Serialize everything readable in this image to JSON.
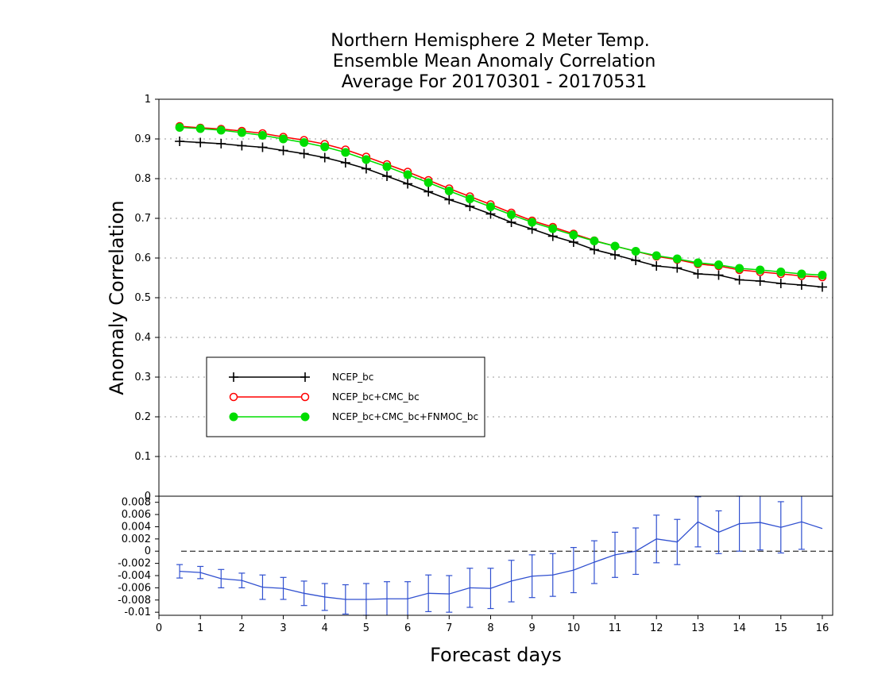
{
  "chart_data": [
    {
      "type": "line",
      "title_lines": [
        "Northern Hemisphere 2 Meter Temp.",
        "Ensemble Mean Anomaly Correlation",
        "Average For 20170301 - 20170531"
      ],
      "ylabel": "Anomaly Correlation",
      "xlabel": "",
      "xlim": [
        0,
        16.25
      ],
      "ylim": [
        0,
        1
      ],
      "yticks": [
        "1",
        "0.9",
        "0.8",
        "0.7",
        "0.6",
        "0.5",
        "0.4",
        "0.3",
        "0.2",
        "0.1",
        "0"
      ],
      "grid": "horizontal-dotted",
      "legend_position": "lower-left",
      "x": [
        0.5,
        1,
        1.5,
        2,
        2.5,
        3,
        3.5,
        4,
        4.5,
        5,
        5.5,
        6,
        6.5,
        7,
        7.5,
        8,
        8.5,
        9,
        9.5,
        10,
        10.5,
        11,
        11.5,
        12,
        12.5,
        13,
        13.5,
        14,
        14.5,
        15,
        15.5,
        16
      ],
      "series": [
        {
          "name": "NCEP_bc",
          "color": "#000000",
          "marker": "plus",
          "values": [
            0.894,
            0.891,
            0.888,
            0.883,
            0.879,
            0.871,
            0.863,
            0.853,
            0.84,
            0.825,
            0.806,
            0.787,
            0.767,
            0.747,
            0.73,
            0.711,
            0.69,
            0.673,
            0.655,
            0.64,
            0.621,
            0.608,
            0.594,
            0.58,
            0.575,
            0.56,
            0.557,
            0.545,
            0.542,
            0.536,
            0.532,
            0.527
          ]
        },
        {
          "name": "NCEP_bc+CMC_bc",
          "color": "#ff0000",
          "marker": "open-circle",
          "values": [
            0.932,
            0.928,
            0.925,
            0.92,
            0.914,
            0.905,
            0.897,
            0.887,
            0.873,
            0.855,
            0.836,
            0.817,
            0.796,
            0.775,
            0.755,
            0.735,
            0.714,
            0.694,
            0.678,
            0.661,
            0.644,
            0.63,
            0.617,
            0.604,
            0.596,
            0.585,
            0.58,
            0.57,
            0.565,
            0.56,
            0.555,
            0.552
          ]
        },
        {
          "name": "NCEP_bc+CMC_bc+FNMOC_bc",
          "color": "#00dd00",
          "marker": "filled-circle",
          "values": [
            0.929,
            0.926,
            0.922,
            0.916,
            0.909,
            0.9,
            0.891,
            0.88,
            0.866,
            0.848,
            0.83,
            0.81,
            0.79,
            0.769,
            0.749,
            0.729,
            0.709,
            0.69,
            0.674,
            0.658,
            0.643,
            0.63,
            0.617,
            0.606,
            0.598,
            0.588,
            0.583,
            0.574,
            0.57,
            0.565,
            0.56,
            0.557
          ]
        }
      ]
    },
    {
      "type": "line",
      "subtype": "errorbar",
      "xlabel": "Forecast days",
      "xlim": [
        0,
        16.25
      ],
      "ylim": [
        -0.0105,
        0.009
      ],
      "xticks": [
        "0",
        "1",
        "2",
        "3",
        "4",
        "5",
        "6",
        "7",
        "8",
        "9",
        "10",
        "11",
        "12",
        "13",
        "14",
        "15",
        "16"
      ],
      "yticks": [
        "0.008",
        "0.006",
        "0.004",
        "0.002",
        "0",
        "-0.002",
        "-0.004",
        "-0.006",
        "-0.008",
        "-0.01"
      ],
      "reference_line": 0,
      "x": [
        0.5,
        1,
        1.5,
        2,
        2.5,
        3,
        3.5,
        4,
        4.5,
        5,
        5.5,
        6,
        6.5,
        7,
        7.5,
        8,
        8.5,
        9,
        9.5,
        10,
        10.5,
        11,
        11.5,
        12,
        12.5,
        13,
        13.5,
        14,
        14.5,
        15,
        15.5,
        16
      ],
      "series": [
        {
          "color": "#3050d0",
          "values": [
            -0.0033,
            -0.0035,
            -0.0045,
            -0.0048,
            -0.0059,
            -0.0061,
            -0.0069,
            -0.0075,
            -0.0079,
            -0.0079,
            -0.0078,
            -0.0078,
            -0.0069,
            -0.007,
            -0.006,
            -0.0061,
            -0.0049,
            -0.0041,
            -0.0039,
            -0.0031,
            -0.0018,
            -0.0006,
            0.0,
            0.002,
            0.0015,
            0.0048,
            0.0031,
            0.0045,
            0.0047,
            0.0039,
            0.0048,
            0.0037
          ],
          "error": [
            0.0011,
            0.001,
            0.0015,
            0.0012,
            0.002,
            0.0018,
            0.002,
            0.0022,
            0.0024,
            0.0026,
            0.0028,
            0.0028,
            0.003,
            0.003,
            0.0032,
            0.0033,
            0.0034,
            0.0035,
            0.0035,
            0.0037,
            0.0035,
            0.0037,
            0.0038,
            0.0039,
            0.0037,
            0.0041,
            0.0035,
            0.0045,
            0.0045,
            0.0042,
            0.0045,
            0.0
          ]
        }
      ]
    }
  ]
}
